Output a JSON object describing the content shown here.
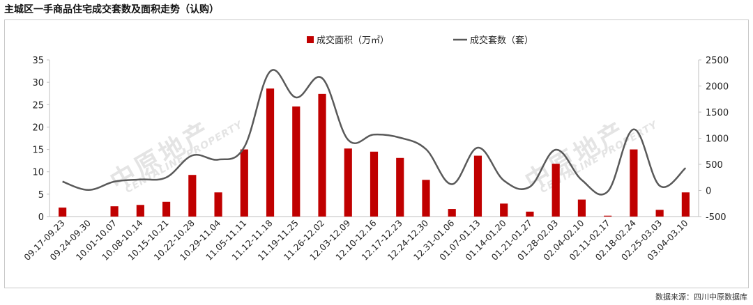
{
  "title": "主城区一手商品住宅成交套数及面积走势（认购）",
  "source": "数据来源：四川中原数据库",
  "watermarks": {
    "logo_text": "中原地产",
    "english_text": "CENTALINE PROPERTY"
  },
  "colors": {
    "bar": "#c00000",
    "line": "#595959",
    "axis": "#bfbfbf",
    "text": "#222222"
  },
  "chart_data": {
    "type": "bar+line",
    "title": "",
    "categories": [
      "09.17-09.23",
      "09.24-09.30",
      "10.01-10.07",
      "10.08-10.14",
      "10.15-10.21",
      "10.22-10.28",
      "10.29-11.04",
      "11.05-11.11",
      "11.12-11.18",
      "11.19-11.25",
      "11.26-12.02",
      "12.03-12.09",
      "12.10-12.16",
      "12.17-12.23",
      "12.24-12.30",
      "12.31-01.06",
      "01.07-01.13",
      "01.14-01.20",
      "01.21-01.27",
      "01.28-02.03",
      "02.04-02.10",
      "02.11-02.17",
      "02.18-02.24",
      "02.25-03.03",
      "03.04-03.10"
    ],
    "series": [
      {
        "name": "成交面积（万㎡）",
        "type": "bar",
        "axis": "left",
        "values": [
          2.0,
          0,
          2.3,
          2.6,
          3.3,
          9.3,
          5.4,
          15.0,
          28.6,
          24.6,
          27.4,
          15.2,
          14.5,
          13.1,
          8.2,
          1.7,
          13.6,
          2.9,
          1.1,
          11.8,
          3.8,
          0.2,
          15.0,
          1.5,
          5.4
        ]
      },
      {
        "name": "成交套数（套）",
        "type": "line",
        "axis": "right",
        "values": [
          170,
          10,
          170,
          210,
          250,
          670,
          590,
          830,
          2280,
          1780,
          2150,
          970,
          1070,
          1010,
          790,
          120,
          820,
          190,
          70,
          780,
          200,
          -20,
          1170,
          90,
          430
        ]
      }
    ],
    "y_left": {
      "min": 0,
      "max": 35,
      "ticks": [
        0,
        5,
        10,
        15,
        20,
        25,
        30,
        35
      ]
    },
    "y_right": {
      "min": -500,
      "max": 2500,
      "ticks": [
        -500,
        0,
        500,
        1000,
        1500,
        2000,
        2500
      ]
    },
    "grid": false,
    "legend": "top-center"
  }
}
